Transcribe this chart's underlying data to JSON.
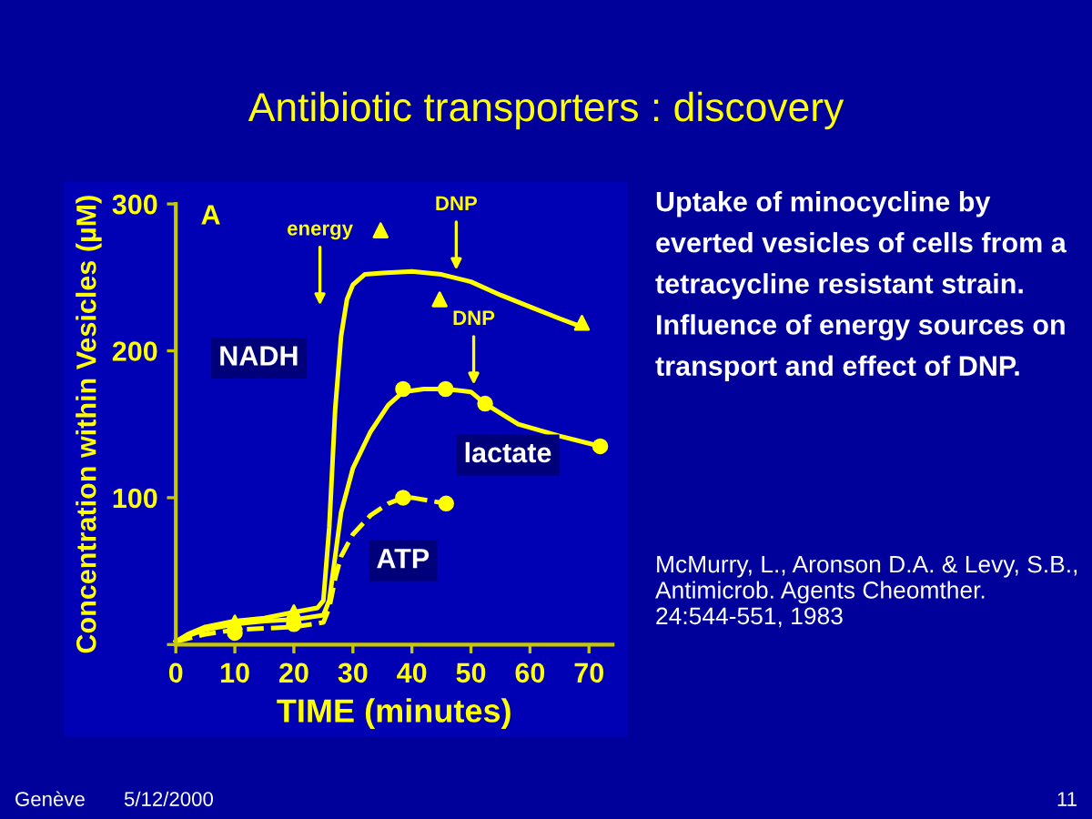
{
  "chart_data": {
    "type": "line",
    "title": "Antibiotic transporters : discovery",
    "xlabel": "TIME (minutes)",
    "ylabel": "Concentration within Vesicles (µM)",
    "xlim": [
      0,
      74
    ],
    "ylim": [
      0,
      300
    ],
    "xticks": [
      0,
      10,
      20,
      30,
      40,
      50,
      60,
      70
    ],
    "yticks": [
      {
        "value": 0,
        "label": null
      },
      100,
      200,
      300
    ],
    "series": [
      {
        "color": "#ffff00",
        "line_style": "solid",
        "x": [
          0,
          2,
          5,
          10,
          15,
          20,
          24,
          25,
          26,
          27,
          28,
          29,
          30,
          32,
          35,
          40,
          45,
          50,
          55,
          60,
          65,
          69
        ],
        "values": [
          2,
          7,
          12,
          16,
          18,
          22,
          25,
          30,
          80,
          160,
          210,
          235,
          245,
          252,
          253,
          254,
          252,
          247,
          238,
          230,
          222,
          216
        ]
      },
      {
        "color": "#ffff00",
        "line_style": "solid",
        "x": [
          0,
          2,
          5,
          10,
          15,
          20,
          25,
          26,
          27,
          28,
          30,
          33,
          36,
          38.5,
          42,
          45.7,
          50,
          52.4,
          58,
          65,
          71.9
        ],
        "values": [
          2,
          6,
          10,
          14,
          16,
          17,
          20,
          30,
          60,
          90,
          120,
          145,
          163,
          172,
          174,
          174,
          172,
          164,
          150,
          142,
          135
        ]
      },
      {
        "color": "#ffff00",
        "line_style": "dashed",
        "x": [
          0,
          5,
          10,
          15,
          20,
          25,
          26,
          27,
          28,
          30,
          33,
          36,
          38.5,
          40,
          45.8
        ],
        "values": [
          2,
          7,
          10,
          11,
          12,
          15,
          25,
          45,
          60,
          75,
          88,
          96,
          100,
          100,
          96
        ]
      },
      {
        "type": "scatter",
        "color": "#ffff00",
        "marker": "triangle",
        "x": [
          10,
          20,
          34.7,
          44.7,
          68.8
        ],
        "values": [
          15,
          22,
          282,
          235,
          219
        ]
      },
      {
        "type": "scatter",
        "color": "#ffff00",
        "marker": "circle",
        "x": [
          38.5,
          45.7,
          52.4,
          71.9
        ],
        "values": [
          174,
          174,
          164,
          135
        ]
      },
      {
        "type": "scatter",
        "color": "#ffff00",
        "marker": "circle",
        "x": [
          10,
          20,
          38.5,
          45.8
        ],
        "values": [
          8,
          14,
          100,
          96
        ]
      }
    ],
    "annotations": [
      "DNP",
      "DNP",
      "A",
      "energy",
      "NADH",
      "lactate",
      "ATP",
      "Uptake of minocycline by everted vesicles of cells from a tetracycline resistant strain.  Influence of energy sources on transport and effect of DNP.",
      "McMurry, L., Aronson D.A. & Levy, S.B., Antimicrob. Agents Cheomther. 24:544-551, 1983",
      "Genève",
      "5/12/2000",
      "11"
    ]
  }
}
